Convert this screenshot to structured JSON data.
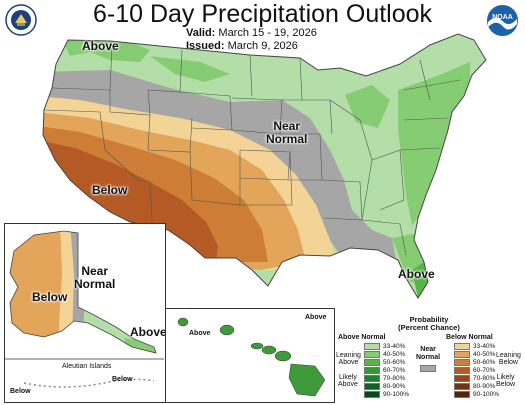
{
  "title": "6-10 Day Precipitation Outlook",
  "valid_label": "Valid:",
  "valid_value": "March 15 - 19, 2026",
  "issued_label": "Issued:",
  "issued_value": "March 9, 2026",
  "logos": {
    "left": "usda-seal-icon",
    "right": "noaa-logo-icon",
    "noaa_text": "NOAA"
  },
  "map_labels": {
    "conus_above_nw": "Above",
    "conus_near_normal": "Near\nNormal",
    "conus_below": "Below",
    "conus_above_se": "Above",
    "alaska_below": "Below",
    "alaska_near_normal": "Near\nNormal",
    "alaska_above": "Above",
    "aleutian_title": "Aleutian Islands",
    "aleutian_below_left": "Below",
    "aleutian_below_right": "Below",
    "hawaii_above_left": "Above",
    "hawaii_above_right": "Above"
  },
  "legend": {
    "title_line1": "Probability",
    "title_line2": "(Percent Chance)",
    "above_header": "Above Normal",
    "below_header": "Below Normal",
    "near_header": "Near\nNormal",
    "leaning_above": "Leaning\nAbove",
    "likely_above": "Likely\nAbove",
    "leaning_below": "Leaning\nBelow",
    "likely_below": "Likely\nBelow",
    "ranges": [
      "33-40%",
      "40-50%",
      "50-60%",
      "60-70%",
      "70-80%",
      "80-90%",
      "90-100%"
    ],
    "above_colors": [
      "#b3dea8",
      "#86cc72",
      "#57b548",
      "#2f9c2c",
      "#15852a",
      "#0b6623",
      "#064a1a"
    ],
    "below_colors": [
      "#f3d496",
      "#e3a55a",
      "#cd7d35",
      "#b65a25",
      "#9a4418",
      "#783110",
      "#55230b"
    ],
    "near_color": "#a6a6a6"
  },
  "colors": {
    "above_33_40": "#b3dea8",
    "above_40_50": "#86cc72",
    "above_50_60": "#57b548",
    "near_normal": "#a6a6a6",
    "below_33_40": "#f3d496",
    "below_40_50": "#e3a55a",
    "below_50_60": "#cd7d35",
    "below_60_70": "#b65a25",
    "state_lines": "#555555"
  }
}
